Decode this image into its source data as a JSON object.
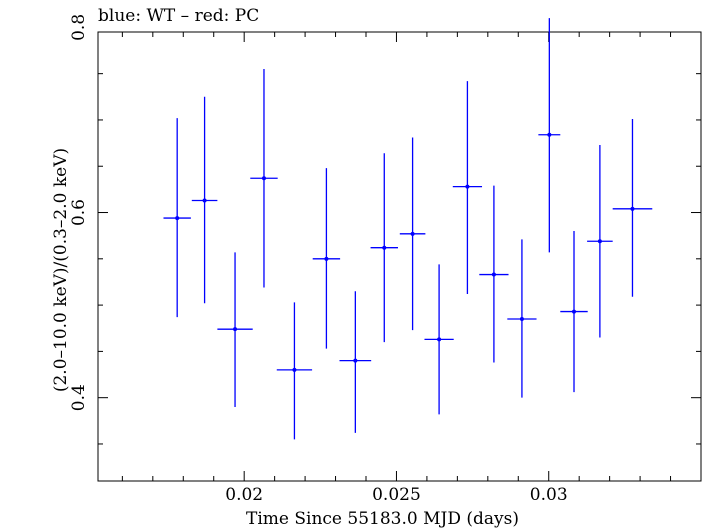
{
  "chart_data": {
    "type": "scatter",
    "title": "blue: WT – red: PC",
    "xlabel": "Time Since 55183.0 MJD (days)",
    "ylabel": "(2.0–10.0 keV)/(0.3–2.0 keV)",
    "xlim": [
      0.0152,
      0.035
    ],
    "ylim": [
      0.31,
      0.795
    ],
    "xticks": [
      0.02,
      0.025,
      0.03
    ],
    "xtick_labels": [
      "0.02",
      "0.025",
      "0.03"
    ],
    "yticks": [
      0.4,
      0.6,
      0.8
    ],
    "ytick_labels": [
      "0.4",
      "0.6",
      "0.8"
    ],
    "grid": false,
    "series": [
      {
        "color": "#0000ff",
        "points": [
          {
            "x": 0.0178,
            "xerr": 0.00045,
            "y": 0.594,
            "ylo": 0.487,
            "yhi": 0.702
          },
          {
            "x": 0.0187,
            "xerr": 0.00042,
            "y": 0.613,
            "ylo": 0.502,
            "yhi": 0.725
          },
          {
            "x": 0.0197,
            "xerr": 0.00058,
            "y": 0.474,
            "ylo": 0.39,
            "yhi": 0.557
          },
          {
            "x": 0.02065,
            "xerr": 0.00045,
            "y": 0.637,
            "ylo": 0.519,
            "yhi": 0.755
          },
          {
            "x": 0.02165,
            "xerr": 0.00058,
            "y": 0.43,
            "ylo": 0.355,
            "yhi": 0.503
          },
          {
            "x": 0.0227,
            "xerr": 0.00045,
            "y": 0.55,
            "ylo": 0.453,
            "yhi": 0.648
          },
          {
            "x": 0.02365,
            "xerr": 0.00052,
            "y": 0.44,
            "ylo": 0.362,
            "yhi": 0.515
          },
          {
            "x": 0.0246,
            "xerr": 0.00045,
            "y": 0.562,
            "ylo": 0.46,
            "yhi": 0.664
          },
          {
            "x": 0.02553,
            "xerr": 0.00042,
            "y": 0.577,
            "ylo": 0.473,
            "yhi": 0.681
          },
          {
            "x": 0.0264,
            "xerr": 0.00048,
            "y": 0.463,
            "ylo": 0.382,
            "yhi": 0.544
          },
          {
            "x": 0.02733,
            "xerr": 0.00048,
            "y": 0.628,
            "ylo": 0.512,
            "yhi": 0.742
          },
          {
            "x": 0.0282,
            "xerr": 0.00048,
            "y": 0.533,
            "ylo": 0.438,
            "yhi": 0.629
          },
          {
            "x": 0.02912,
            "xerr": 0.00048,
            "y": 0.485,
            "ylo": 0.4,
            "yhi": 0.571
          },
          {
            "x": 0.03002,
            "xerr": 0.00036,
            "y": 0.684,
            "ylo": 0.557,
            "yhi": 0.81
          },
          {
            "x": 0.03083,
            "xerr": 0.00045,
            "y": 0.493,
            "ylo": 0.406,
            "yhi": 0.58
          },
          {
            "x": 0.03168,
            "xerr": 0.00042,
            "y": 0.569,
            "ylo": 0.465,
            "yhi": 0.673
          },
          {
            "x": 0.03275,
            "xerr": 0.00065,
            "y": 0.604,
            "ylo": 0.509,
            "yhi": 0.701
          }
        ]
      }
    ]
  }
}
